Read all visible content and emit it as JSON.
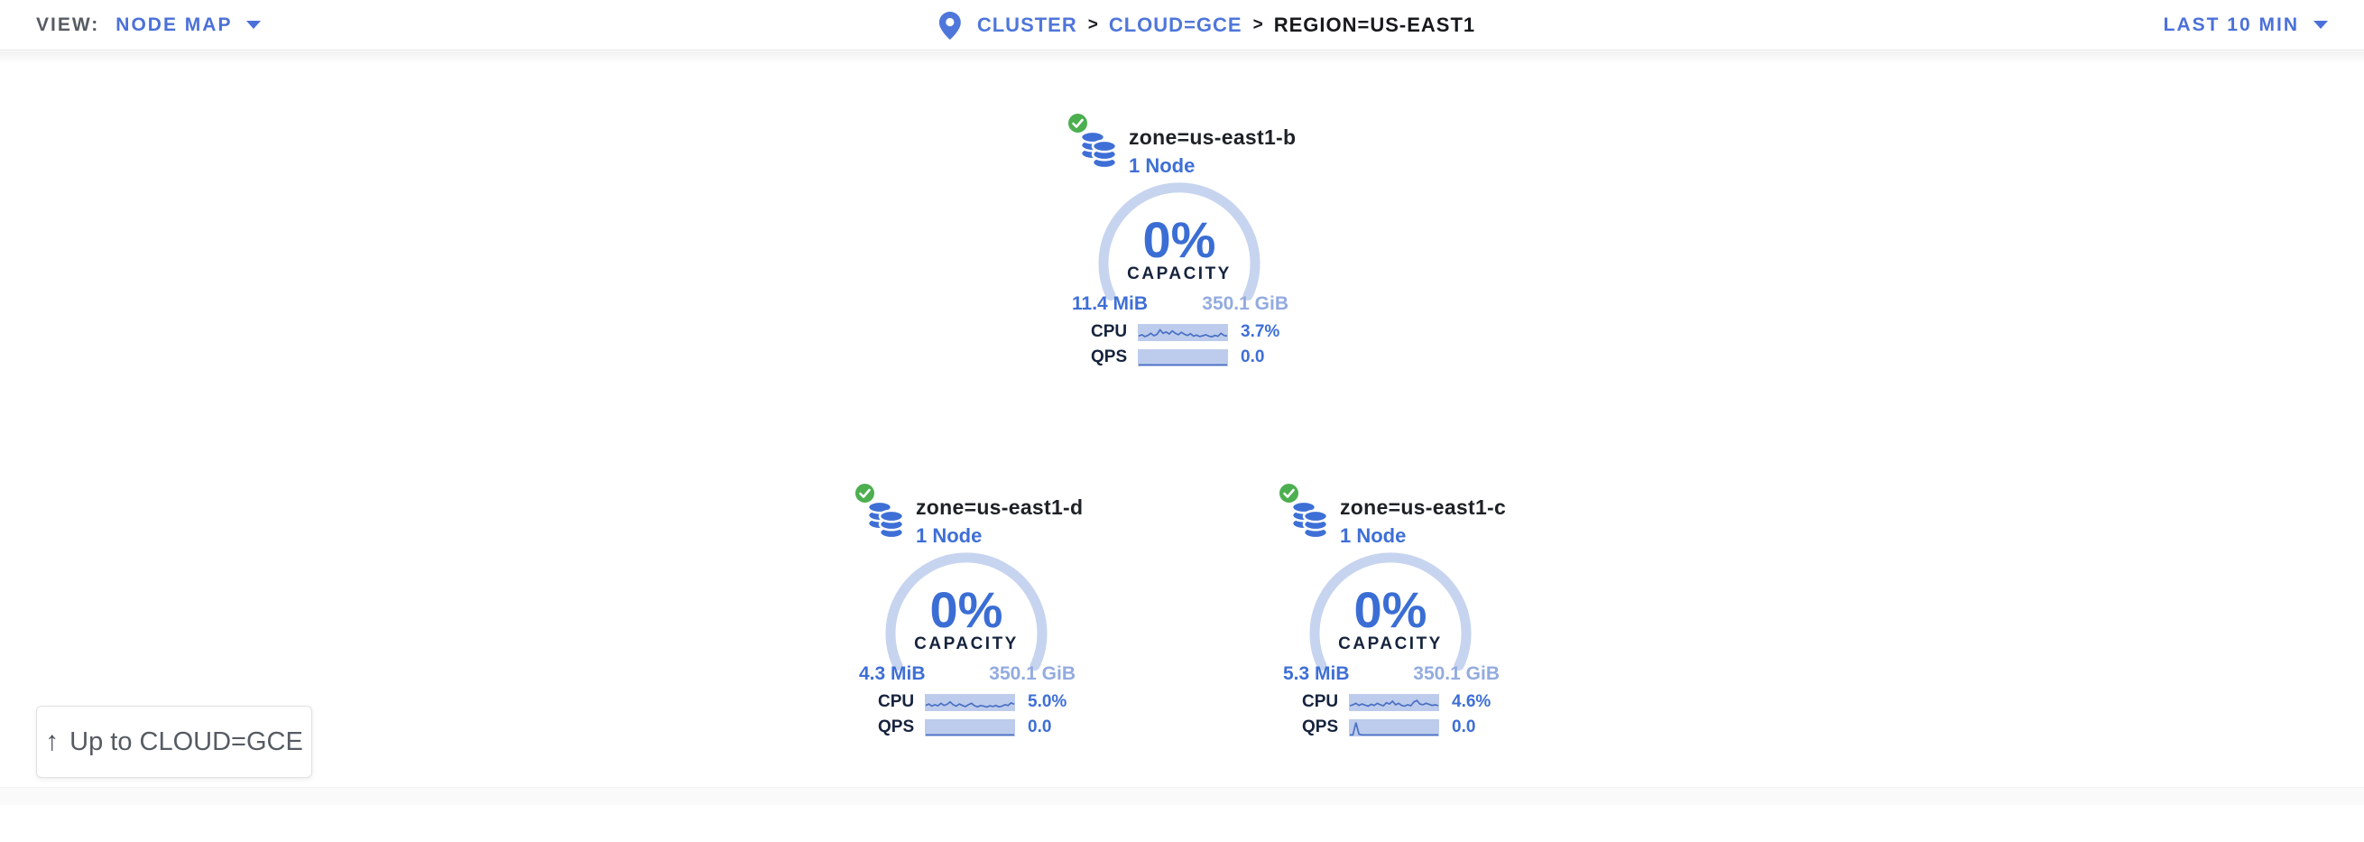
{
  "header": {
    "view_label": "VIEW:",
    "view_value": "NODE MAP",
    "breadcrumb": {
      "separator": ">",
      "items": [
        {
          "label": "CLUSTER"
        },
        {
          "label": "CLOUD=GCE"
        },
        {
          "label": "REGION=US-EAST1"
        }
      ]
    },
    "time_range": "LAST 10 MIN"
  },
  "zones": [
    {
      "name": "zone=us-east1-b",
      "node_count": "1 Node",
      "status": "healthy",
      "capacity_pct": "0%",
      "capacity_label": "CAPACITY",
      "capacity_used": "11.4 MiB",
      "capacity_total": "350.1 GiB",
      "cpu_label": "CPU",
      "cpu_value": "3.7%",
      "qps_label": "QPS",
      "qps_value": "0.0",
      "cpu_spark": [
        0.25,
        0.35,
        0.22,
        0.3,
        0.45,
        0.28,
        0.38,
        0.7,
        0.45,
        0.55,
        0.4,
        0.62,
        0.45,
        0.35,
        0.52,
        0.38,
        0.3,
        0.42,
        0.25,
        0.32,
        0.22,
        0.28,
        0.35,
        0.25,
        0.2,
        0.3,
        0.24,
        0.45,
        0.3,
        0.26
      ],
      "qps_spark": [
        0,
        0,
        0,
        0,
        0,
        0,
        0,
        0,
        0,
        0,
        0,
        0,
        0,
        0,
        0,
        0,
        0,
        0,
        0,
        0,
        0,
        0,
        0,
        0,
        0,
        0,
        0,
        0,
        0,
        0
      ]
    },
    {
      "name": "zone=us-east1-d",
      "node_count": "1 Node",
      "status": "healthy",
      "capacity_pct": "0%",
      "capacity_label": "CAPACITY",
      "capacity_used": "4.3 MiB",
      "capacity_total": "350.1 GiB",
      "cpu_label": "CPU",
      "cpu_value": "5.0%",
      "qps_label": "QPS",
      "qps_value": "0.0",
      "cpu_spark": [
        0.3,
        0.4,
        0.25,
        0.35,
        0.28,
        0.45,
        0.3,
        0.38,
        0.55,
        0.35,
        0.25,
        0.4,
        0.3,
        0.22,
        0.35,
        0.45,
        0.28,
        0.2,
        0.3,
        0.25,
        0.18,
        0.28,
        0.22,
        0.3,
        0.2,
        0.25,
        0.35,
        0.3,
        0.48,
        0.38
      ],
      "qps_spark": [
        0,
        0,
        0,
        0,
        0,
        0,
        0,
        0,
        0,
        0,
        0,
        0,
        0,
        0,
        0,
        0,
        0,
        0,
        0,
        0,
        0,
        0,
        0,
        0,
        0,
        0,
        0,
        0,
        0,
        0
      ]
    },
    {
      "name": "zone=us-east1-c",
      "node_count": "1 Node",
      "status": "healthy",
      "capacity_pct": "0%",
      "capacity_label": "CAPACITY",
      "capacity_used": "5.3 MiB",
      "capacity_total": "350.1 GiB",
      "cpu_label": "CPU",
      "cpu_value": "4.6%",
      "qps_label": "QPS",
      "qps_value": "0.0",
      "cpu_spark": [
        0.28,
        0.35,
        0.45,
        0.3,
        0.4,
        0.32,
        0.25,
        0.38,
        0.3,
        0.45,
        0.35,
        0.28,
        0.5,
        0.4,
        0.6,
        0.35,
        0.45,
        0.3,
        0.25,
        0.35,
        0.28,
        0.55,
        0.65,
        0.4,
        0.35,
        0.45,
        0.38,
        0.3,
        0.35,
        0.28
      ],
      "qps_spark": [
        0,
        0,
        0.88,
        0.05,
        0,
        0,
        0,
        0,
        0,
        0,
        0,
        0,
        0,
        0,
        0,
        0,
        0,
        0,
        0,
        0,
        0,
        0,
        0,
        0,
        0,
        0,
        0,
        0,
        0,
        0
      ]
    }
  ],
  "up_button": {
    "label": "Up to CLOUD=GCE"
  },
  "colors": {
    "accent_blue": "#3e6fd6",
    "link_blue": "#4b70d9",
    "light_blue_total": "#93abdf",
    "ring_blue": "#c6d4ef",
    "spark_bg": "#bdccec",
    "spark_line": "#4a70c4",
    "healthy_green": "#4caf50",
    "dark_navy": "#16233d"
  }
}
